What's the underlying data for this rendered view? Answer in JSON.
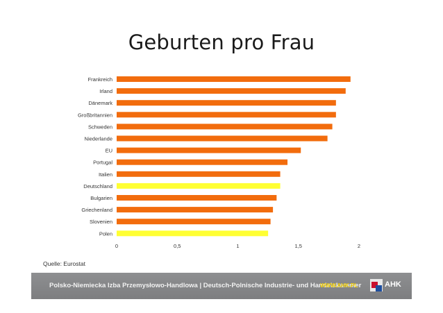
{
  "chart_data": {
    "type": "bar",
    "orientation": "horizontal",
    "title": "Geburten pro Frau",
    "categories": [
      "Frankreich",
      "Irland",
      "Dänemark",
      "Großbritannien",
      "Schweden",
      "Niederlande",
      "EU",
      "Portugal",
      "Italien",
      "Deutschland",
      "Bulgarien",
      "Griechenland",
      "Slovenien",
      "Polen"
    ],
    "values": [
      1.93,
      1.89,
      1.81,
      1.81,
      1.78,
      1.74,
      1.52,
      1.41,
      1.35,
      1.35,
      1.32,
      1.29,
      1.27,
      1.25
    ],
    "bar_colors": [
      "#f26c0d",
      "#f26c0d",
      "#f26c0d",
      "#f26c0d",
      "#f26c0d",
      "#f26c0d",
      "#f26c0d",
      "#f26c0d",
      "#f26c0d",
      "#ffff33",
      "#f26c0d",
      "#f26c0d",
      "#f26c0d",
      "#ffff33"
    ],
    "xlim": [
      0,
      2
    ],
    "xticks": [
      0,
      0.5,
      1,
      1.5,
      2
    ],
    "xtick_labels": [
      "0",
      "0,5",
      "1",
      "1,5",
      "2"
    ],
    "grid": false,
    "legend": false
  },
  "source": "Quelle: Eurostat",
  "footer": {
    "text": "Polsko-Niemiecka Izba Przemysłowo-Handlowa  |  Deutsch-Polnische Industrie- und Handelskammer",
    "url": "WWW.AHK.PL",
    "logo_text": "AHK"
  },
  "colors": {
    "orange": "#f26c0d",
    "yellow": "#ffff33",
    "footer_bg": "#838486"
  }
}
